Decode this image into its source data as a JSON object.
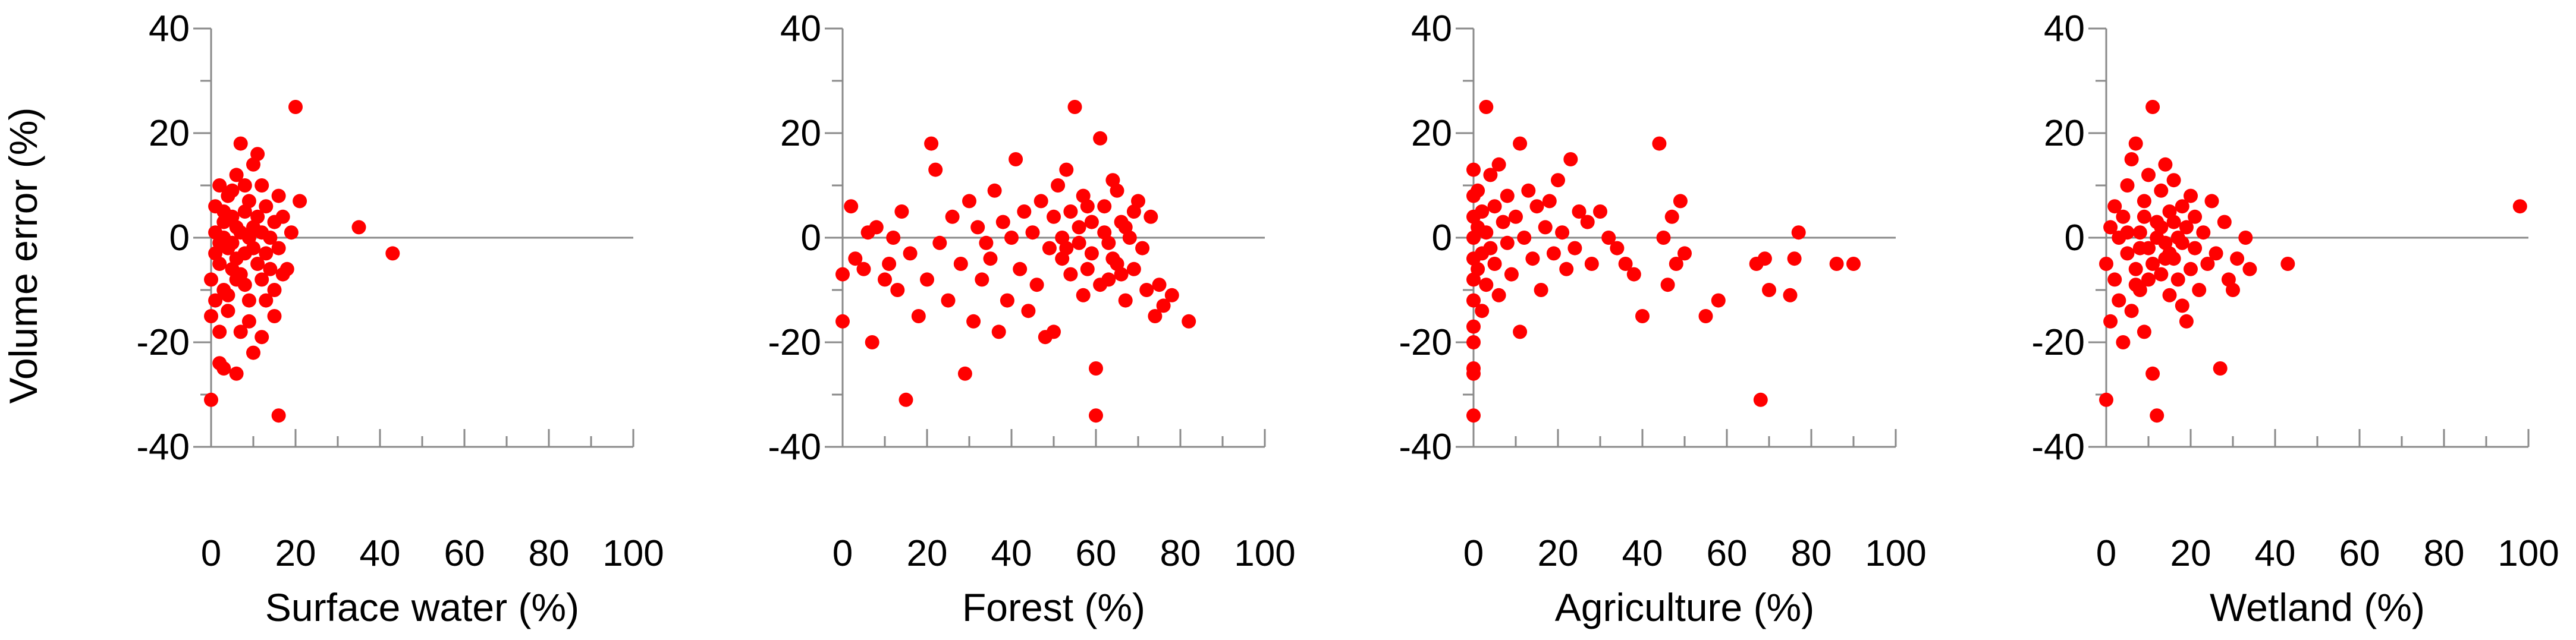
{
  "figure": {
    "ylabel": "Volume error (%)",
    "colors": {
      "points": "#ff0000",
      "axes": "#8a8a8a",
      "text": "#000000"
    }
  },
  "chart_data": [
    {
      "type": "scatter",
      "xlabel": "Surface water (%)",
      "ylabel": "Volume error (%)",
      "xlim": [
        0,
        100
      ],
      "ylim": [
        -40,
        40
      ],
      "xticks": [
        "0",
        "20",
        "40",
        "60",
        "80",
        "100"
      ],
      "yticks": [
        "40",
        "20",
        "0",
        "-20",
        "-40"
      ],
      "grid": false,
      "points": [
        [
          0,
          -31
        ],
        [
          0,
          -15
        ],
        [
          0,
          -8
        ],
        [
          1,
          -12
        ],
        [
          1,
          6
        ],
        [
          1,
          -3
        ],
        [
          2,
          10
        ],
        [
          2,
          -18
        ],
        [
          2,
          -5
        ],
        [
          3,
          3
        ],
        [
          3,
          -10
        ],
        [
          3,
          0
        ],
        [
          4,
          -2
        ],
        [
          4,
          8
        ],
        [
          4,
          -14
        ],
        [
          5,
          -6
        ],
        [
          5,
          4
        ],
        [
          5,
          -1
        ],
        [
          6,
          2
        ],
        [
          6,
          -4
        ],
        [
          6,
          12
        ],
        [
          7,
          -7
        ],
        [
          7,
          1
        ],
        [
          7,
          18
        ],
        [
          8,
          -3
        ],
        [
          8,
          5
        ],
        [
          8,
          -9
        ],
        [
          9,
          0
        ],
        [
          9,
          7
        ],
        [
          9,
          -12
        ],
        [
          10,
          2
        ],
        [
          10,
          -2
        ],
        [
          10,
          14
        ],
        [
          11,
          -5
        ],
        [
          11,
          4
        ],
        [
          12,
          1
        ],
        [
          12,
          -8
        ],
        [
          12,
          10
        ],
        [
          13,
          -3
        ],
        [
          13,
          6
        ],
        [
          14,
          0
        ],
        [
          14,
          -6
        ],
        [
          15,
          3
        ],
        [
          15,
          -10
        ],
        [
          16,
          8
        ],
        [
          16,
          -2
        ],
        [
          17,
          4
        ],
        [
          18,
          -6
        ],
        [
          19,
          1
        ],
        [
          20,
          25
        ],
        [
          21,
          7
        ],
        [
          2,
          -24
        ],
        [
          3,
          -25
        ],
        [
          6,
          -26
        ],
        [
          10,
          -22
        ],
        [
          12,
          -19
        ],
        [
          16,
          -34
        ],
        [
          9,
          -16
        ],
        [
          7,
          -18
        ],
        [
          4,
          -11
        ],
        [
          5,
          9
        ],
        [
          3,
          5
        ],
        [
          2,
          -1
        ],
        [
          1,
          1
        ],
        [
          6,
          -8
        ],
        [
          8,
          10
        ],
        [
          11,
          16
        ],
        [
          13,
          -12
        ],
        [
          15,
          -15
        ],
        [
          17,
          -7
        ],
        [
          35,
          2
        ],
        [
          43,
          -3
        ]
      ]
    },
    {
      "type": "scatter",
      "xlabel": "Forest (%)",
      "ylabel": "",
      "xlim": [
        0,
        100
      ],
      "ylim": [
        -40,
        40
      ],
      "xticks": [
        "0",
        "20",
        "40",
        "60",
        "80",
        "100"
      ],
      "yticks": [
        "40",
        "20",
        "0",
        "-20",
        "-40"
      ],
      "grid": false,
      "points": [
        [
          0,
          -16
        ],
        [
          0,
          -7
        ],
        [
          2,
          6
        ],
        [
          3,
          -4
        ],
        [
          5,
          -6
        ],
        [
          6,
          1
        ],
        [
          7,
          -20
        ],
        [
          8,
          2
        ],
        [
          10,
          -8
        ],
        [
          11,
          -5
        ],
        [
          12,
          0
        ],
        [
          13,
          -10
        ],
        [
          14,
          5
        ],
        [
          15,
          -31
        ],
        [
          16,
          -3
        ],
        [
          18,
          -15
        ],
        [
          20,
          -8
        ],
        [
          21,
          18
        ],
        [
          22,
          13
        ],
        [
          23,
          -1
        ],
        [
          25,
          -12
        ],
        [
          26,
          4
        ],
        [
          28,
          -5
        ],
        [
          29,
          -26
        ],
        [
          30,
          7
        ],
        [
          31,
          -16
        ],
        [
          32,
          2
        ],
        [
          33,
          -8
        ],
        [
          34,
          -1
        ],
        [
          35,
          -4
        ],
        [
          36,
          9
        ],
        [
          37,
          -18
        ],
        [
          38,
          3
        ],
        [
          39,
          -12
        ],
        [
          40,
          0
        ],
        [
          41,
          15
        ],
        [
          42,
          -6
        ],
        [
          43,
          5
        ],
        [
          44,
          -14
        ],
        [
          45,
          1
        ],
        [
          46,
          -9
        ],
        [
          47,
          7
        ],
        [
          48,
          -19
        ],
        [
          49,
          -2
        ],
        [
          50,
          4
        ],
        [
          51,
          10
        ],
        [
          52,
          -4
        ],
        [
          53,
          13
        ],
        [
          54,
          -7
        ],
        [
          55,
          25
        ],
        [
          56,
          2
        ],
        [
          57,
          -11
        ],
        [
          58,
          6
        ],
        [
          59,
          -3
        ],
        [
          60,
          -25
        ],
        [
          60,
          -34
        ],
        [
          61,
          19
        ],
        [
          62,
          1
        ],
        [
          63,
          -8
        ],
        [
          64,
          11
        ],
        [
          65,
          -5
        ],
        [
          66,
          3
        ],
        [
          67,
          -12
        ],
        [
          68,
          0
        ],
        [
          69,
          -6
        ],
        [
          70,
          7
        ],
        [
          71,
          -2
        ],
        [
          72,
          -10
        ],
        [
          73,
          4
        ],
        [
          74,
          -15
        ],
        [
          75,
          -9
        ],
        [
          76,
          -13
        ],
        [
          78,
          -11
        ],
        [
          82,
          -16
        ],
        [
          50,
          -18
        ],
        [
          52,
          0
        ],
        [
          53,
          -2
        ],
        [
          54,
          5
        ],
        [
          56,
          -1
        ],
        [
          57,
          8
        ],
        [
          58,
          -6
        ],
        [
          59,
          3
        ],
        [
          61,
          -9
        ],
        [
          62,
          6
        ],
        [
          63,
          -1
        ],
        [
          64,
          -4
        ],
        [
          65,
          9
        ],
        [
          66,
          -7
        ],
        [
          67,
          2
        ],
        [
          69,
          5
        ]
      ]
    },
    {
      "type": "scatter",
      "xlabel": "Agriculture (%)",
      "ylabel": "",
      "xlim": [
        0,
        100
      ],
      "ylim": [
        -40,
        40
      ],
      "xticks": [
        "0",
        "20",
        "40",
        "60",
        "80",
        "100"
      ],
      "yticks": [
        "40",
        "20",
        "0",
        "-20",
        "-40"
      ],
      "grid": false,
      "points": [
        [
          0,
          -34
        ],
        [
          0,
          -26
        ],
        [
          0,
          -25
        ],
        [
          0,
          -20
        ],
        [
          0,
          -17
        ],
        [
          0,
          -12
        ],
        [
          0,
          -8
        ],
        [
          0,
          -4
        ],
        [
          0,
          0
        ],
        [
          0,
          4
        ],
        [
          0,
          8
        ],
        [
          0,
          13
        ],
        [
          1,
          -6
        ],
        [
          1,
          2
        ],
        [
          1,
          9
        ],
        [
          2,
          -14
        ],
        [
          2,
          -3
        ],
        [
          2,
          5
        ],
        [
          3,
          25
        ],
        [
          3,
          -9
        ],
        [
          3,
          1
        ],
        [
          4,
          -2
        ],
        [
          4,
          12
        ],
        [
          5,
          -5
        ],
        [
          5,
          6
        ],
        [
          6,
          14
        ],
        [
          6,
          -11
        ],
        [
          7,
          3
        ],
        [
          8,
          -1
        ],
        [
          8,
          8
        ],
        [
          9,
          -7
        ],
        [
          10,
          4
        ],
        [
          11,
          -18
        ],
        [
          11,
          18
        ],
        [
          12,
          0
        ],
        [
          13,
          9
        ],
        [
          14,
          -4
        ],
        [
          15,
          6
        ],
        [
          16,
          -10
        ],
        [
          17,
          2
        ],
        [
          18,
          7
        ],
        [
          19,
          -3
        ],
        [
          20,
          11
        ],
        [
          21,
          1
        ],
        [
          22,
          -6
        ],
        [
          23,
          15
        ],
        [
          24,
          -2
        ],
        [
          25,
          5
        ],
        [
          27,
          3
        ],
        [
          28,
          -5
        ],
        [
          30,
          5
        ],
        [
          32,
          0
        ],
        [
          34,
          -2
        ],
        [
          36,
          -5
        ],
        [
          38,
          -7
        ],
        [
          40,
          -15
        ],
        [
          44,
          18
        ],
        [
          45,
          0
        ],
        [
          46,
          -9
        ],
        [
          47,
          4
        ],
        [
          48,
          -5
        ],
        [
          49,
          7
        ],
        [
          50,
          -3
        ],
        [
          55,
          -15
        ],
        [
          58,
          -12
        ],
        [
          67,
          -5
        ],
        [
          68,
          -31
        ],
        [
          69,
          -4
        ],
        [
          70,
          -10
        ],
        [
          75,
          -11
        ],
        [
          76,
          -4
        ],
        [
          77,
          1
        ],
        [
          86,
          -5
        ],
        [
          90,
          -5
        ]
      ]
    },
    {
      "type": "scatter",
      "xlabel": "Wetland (%)",
      "ylabel": "",
      "xlim": [
        0,
        100
      ],
      "ylim": [
        -40,
        40
      ],
      "xticks": [
        "0",
        "20",
        "40",
        "60",
        "80",
        "100"
      ],
      "yticks": [
        "40",
        "20",
        "0",
        "-20",
        "-40"
      ],
      "grid": false,
      "points": [
        [
          0,
          -31
        ],
        [
          0,
          -5
        ],
        [
          1,
          -16
        ],
        [
          1,
          2
        ],
        [
          2,
          -8
        ],
        [
          2,
          6
        ],
        [
          3,
          -12
        ],
        [
          3,
          0
        ],
        [
          4,
          -20
        ],
        [
          4,
          4
        ],
        [
          5,
          -3
        ],
        [
          5,
          10
        ],
        [
          6,
          -14
        ],
        [
          6,
          15
        ],
        [
          7,
          -6
        ],
        [
          7,
          18
        ],
        [
          8,
          1
        ],
        [
          8,
          -10
        ],
        [
          9,
          -18
        ],
        [
          9,
          7
        ],
        [
          10,
          -2
        ],
        [
          10,
          12
        ],
        [
          11,
          -26
        ],
        [
          11,
          25
        ],
        [
          12,
          -34
        ],
        [
          12,
          3
        ],
        [
          13,
          -7
        ],
        [
          13,
          9
        ],
        [
          14,
          -1
        ],
        [
          14,
          14
        ],
        [
          15,
          -11
        ],
        [
          15,
          5
        ],
        [
          16,
          -4
        ],
        [
          16,
          11
        ],
        [
          17,
          0
        ],
        [
          17,
          -8
        ],
        [
          18,
          6
        ],
        [
          18,
          -13
        ],
        [
          19,
          2
        ],
        [
          19,
          -16
        ],
        [
          20,
          -6
        ],
        [
          20,
          8
        ],
        [
          21,
          -2
        ],
        [
          21,
          4
        ],
        [
          22,
          -10
        ],
        [
          23,
          1
        ],
        [
          24,
          -5
        ],
        [
          25,
          7
        ],
        [
          26,
          -3
        ],
        [
          27,
          -25
        ],
        [
          28,
          3
        ],
        [
          29,
          -8
        ],
        [
          30,
          -10
        ],
        [
          31,
          -4
        ],
        [
          33,
          0
        ],
        [
          34,
          -6
        ],
        [
          43,
          -5
        ],
        [
          98,
          6
        ],
        [
          5,
          1
        ],
        [
          8,
          -2
        ],
        [
          10,
          -8
        ],
        [
          12,
          0
        ],
        [
          14,
          -4
        ],
        [
          16,
          3
        ],
        [
          18,
          -1
        ],
        [
          11,
          -5
        ],
        [
          9,
          4
        ],
        [
          7,
          -9
        ],
        [
          13,
          2
        ],
        [
          15,
          -3
        ]
      ]
    }
  ]
}
